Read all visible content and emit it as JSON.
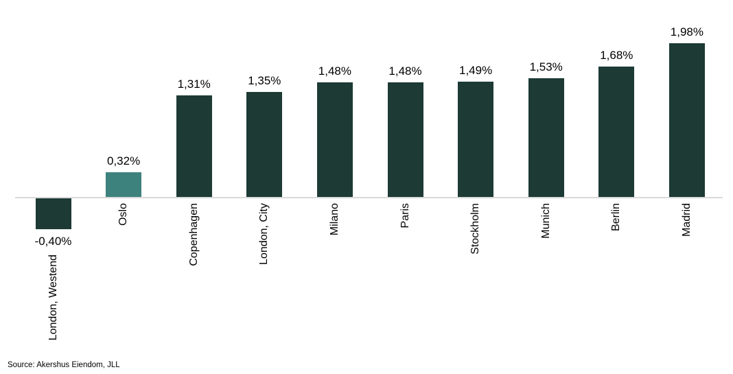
{
  "chart_data": {
    "type": "bar",
    "title": "",
    "xlabel": "",
    "ylabel": "",
    "categories": [
      "London, Westend",
      "Oslo",
      "Copenhagen",
      "London, City",
      "Milano",
      "Paris",
      "Stockholm",
      "Munich",
      "Berlin",
      "Madrid"
    ],
    "values": [
      -0.4,
      0.32,
      1.31,
      1.35,
      1.48,
      1.48,
      1.49,
      1.53,
      1.68,
      1.98
    ],
    "value_labels": [
      "-0,40%",
      "0,32%",
      "1,31%",
      "1,35%",
      "1,48%",
      "1,48%",
      "1,49%",
      "1,53%",
      "1,68%",
      "1,98%"
    ],
    "highlight_index": 1,
    "colors": {
      "bar_default": "#1d3a35",
      "bar_highlight": "#3e827e",
      "axis_line": "#d9d9d9",
      "label_text": "#000000",
      "background": "#ffffff"
    },
    "ylim": [
      -0.5,
      2.1
    ],
    "grid": false,
    "legend": false,
    "y_axis_ticks_visible": false,
    "category_label_rotation": "vertical-bottom-to-top"
  },
  "footer": {
    "source": "Source: Akershus Eiendom, JLL"
  }
}
